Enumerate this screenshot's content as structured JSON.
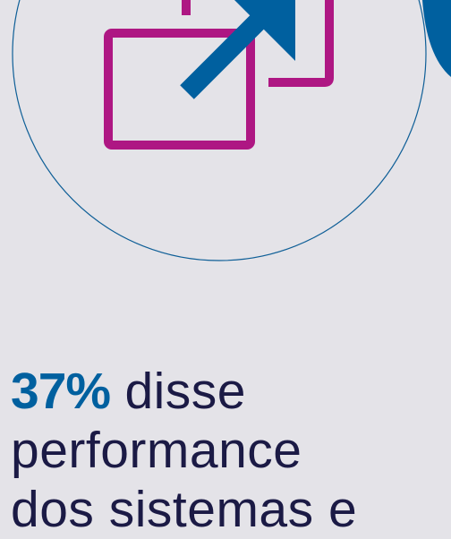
{
  "colors": {
    "background": "#e4e3e8",
    "accent_blue": "#00609f",
    "accent_magenta": "#ae1783",
    "text_dark": "#1b1a45",
    "circle_outline": "#0f5f97"
  },
  "graphic": {
    "icon": "external-link-icon"
  },
  "stat": {
    "number": "37%",
    "line1_rest": "disse",
    "line2": "performance",
    "line3": "dos sistemas e"
  }
}
